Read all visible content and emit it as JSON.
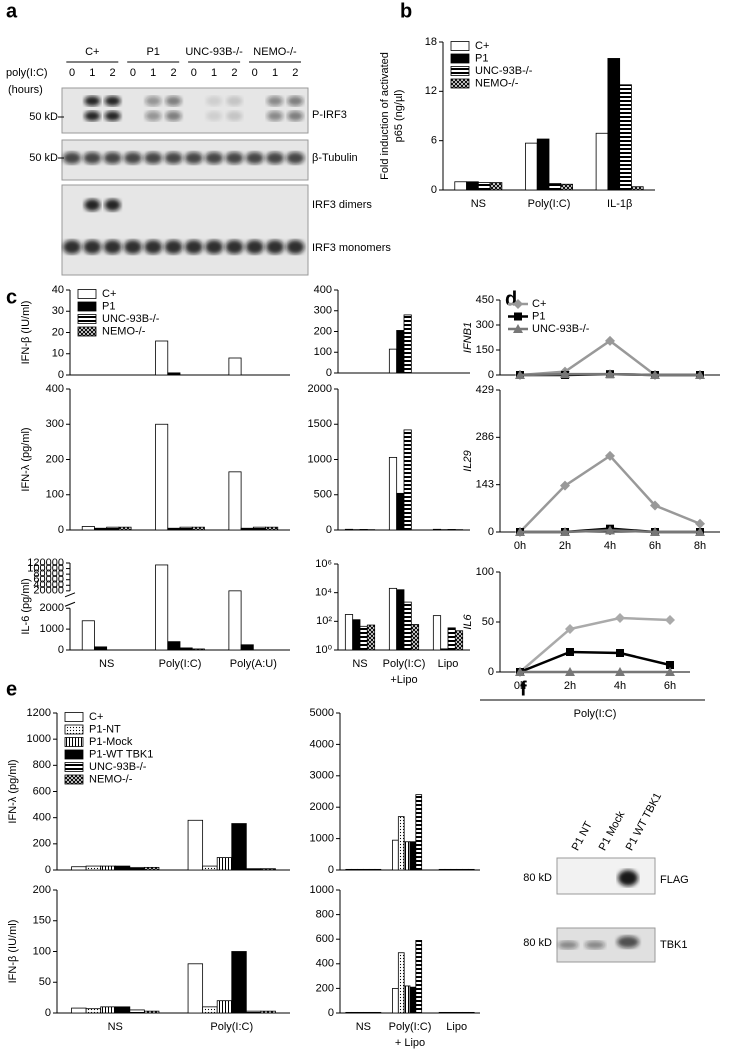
{
  "panel_labels": [
    "a",
    "b",
    "c",
    "d",
    "e",
    "f"
  ],
  "blot_a": {
    "groups": [
      "C+",
      "P1",
      "UNC-93B-/-",
      "NEMO-/-"
    ],
    "treatment": "poly(I:C)",
    "unit": "(hours)",
    "lanes": [
      "0",
      "1",
      "2",
      "0",
      "1",
      "2",
      "0",
      "1",
      "2",
      "0",
      "1",
      "2"
    ],
    "markers": [
      "50 kD",
      "50 kD"
    ],
    "bands": [
      "P-IRF3",
      "β-Tubulin",
      "IRF3 dimers",
      "IRF3 monomers"
    ]
  },
  "blot_f": {
    "lanes": [
      "P1 NT",
      "P1 Mock",
      "P1 WT TBK1"
    ],
    "markers": [
      "80 kD",
      "80 kD"
    ],
    "bands": [
      "FLAG",
      "TBK1"
    ]
  },
  "chart_data": [
    {
      "type": "bar",
      "ylabel": [
        "Fold induction of activated",
        "p65 (ng/µl)"
      ],
      "categories": [
        "NS",
        "Poly(I:C)",
        "IL-1β"
      ],
      "series": [
        {
          "name": "C+",
          "color": "#ffffff",
          "values": [
            1,
            5.7,
            6.9
          ]
        },
        {
          "name": "P1",
          "color": "#000000",
          "values": [
            1,
            6.2,
            16
          ]
        },
        {
          "name": "UNC-93B-/-",
          "color": "#ffffff",
          "pattern": "hstripes",
          "values": [
            0.9,
            0.8,
            12.8
          ]
        },
        {
          "name": "NEMO-/-",
          "color": "#ffffff",
          "pattern": "cross",
          "values": [
            0.9,
            0.7,
            0.4
          ]
        }
      ],
      "ylim": [
        0,
        18
      ],
      "yticks": [
        0,
        6,
        12,
        18
      ],
      "legend": "upper left"
    },
    {
      "type": "bar",
      "ylabel": "IFN-β (IU/ml)",
      "categories": [
        null,
        null,
        null
      ],
      "series": [
        {
          "name": "C+",
          "color": "#ffffff",
          "values": [
            0,
            16,
            8
          ]
        },
        {
          "name": "P1",
          "color": "#000000",
          "values": [
            0,
            1,
            0
          ]
        },
        {
          "name": "UNC-93B-/-",
          "color": "#ffffff",
          "pattern": "hstripes",
          "values": [
            0,
            0,
            0
          ]
        },
        {
          "name": "NEMO-/-",
          "color": "#ffffff",
          "pattern": "cross",
          "values": [
            0,
            0,
            0
          ]
        }
      ],
      "ylim": [
        0,
        40
      ],
      "yticks": [
        0,
        10,
        20,
        30,
        40
      ],
      "legend": "upper left"
    },
    {
      "type": "bar",
      "categories": [
        null,
        null,
        null
      ],
      "series": [
        {
          "color": "#ffffff",
          "values": [
            0,
            115,
            0
          ]
        },
        {
          "color": "#000000",
          "values": [
            0,
            205,
            0
          ]
        },
        {
          "color": "#ffffff",
          "pattern": "hstripes",
          "values": [
            0,
            280,
            0
          ]
        },
        {
          "color": "#ffffff",
          "pattern": "cross",
          "values": [
            0,
            0,
            0
          ]
        }
      ],
      "ylim": [
        0,
        400
      ],
      "yticks": [
        0,
        100,
        200,
        300,
        400
      ]
    },
    {
      "type": "bar",
      "ylabel": "IFN-λ (pg/ml)",
      "categories": [
        null,
        null,
        null
      ],
      "series": [
        {
          "color": "#ffffff",
          "values": [
            10,
            300,
            165
          ]
        },
        {
          "color": "#000000",
          "values": [
            5,
            5,
            5
          ]
        },
        {
          "color": "#ffffff",
          "pattern": "hstripes",
          "values": [
            8,
            8,
            8
          ]
        },
        {
          "color": "#ffffff",
          "pattern": "cross",
          "values": [
            8,
            8,
            8
          ]
        }
      ],
      "ylim": [
        0,
        400
      ],
      "yticks": [
        0,
        100,
        200,
        300,
        400
      ]
    },
    {
      "type": "bar",
      "categories": [
        null,
        null,
        null
      ],
      "series": [
        {
          "color": "#ffffff",
          "values": [
            10,
            1030,
            10
          ]
        },
        {
          "color": "#000000",
          "values": [
            5,
            520,
            5
          ]
        },
        {
          "color": "#ffffff",
          "pattern": "hstripes",
          "values": [
            8,
            1420,
            8
          ]
        },
        {
          "color": "#ffffff",
          "pattern": "cross",
          "values": [
            5,
            0,
            5
          ]
        }
      ],
      "ylim": [
        0,
        2000
      ],
      "yticks": [
        0,
        500,
        1000,
        1500,
        2000
      ]
    },
    {
      "type": "bar",
      "ylabel": "IL-6 (pg/ml)",
      "categories": [
        "NS",
        "Poly(I:C)",
        "Poly(A:U)"
      ],
      "series": [
        {
          "color": "#ffffff",
          "values": [
            1400,
            113000,
            20000
          ]
        },
        {
          "color": "#000000",
          "values": [
            150,
            400,
            250
          ]
        },
        {
          "color": "#ffffff",
          "pattern": "hstripes",
          "values": [
            0,
            100,
            0
          ]
        },
        {
          "color": "#ffffff",
          "pattern": "cross",
          "values": [
            0,
            50,
            0
          ]
        }
      ],
      "ylim": [
        0,
        120000
      ],
      "ybreak": [
        2000,
        20000
      ],
      "yticks": [
        0,
        1000,
        2000,
        20000,
        40000,
        60000,
        80000,
        100000,
        120000
      ]
    },
    {
      "type": "bar",
      "categories": [
        "NS",
        "Poly(I:C)",
        "Lipo"
      ],
      "category_sublabels": [
        null,
        "+Lipo",
        null
      ],
      "series": [
        {
          "color": "#ffffff",
          "values": [
            300,
            20000,
            250
          ]
        },
        {
          "color": "#000000",
          "values": [
            130,
            16000,
            1.2
          ]
        },
        {
          "color": "#ffffff",
          "pattern": "hstripes",
          "values": [
            45,
            2200,
            35
          ]
        },
        {
          "color": "#ffffff",
          "pattern": "cross",
          "values": [
            55,
            60,
            22
          ]
        }
      ],
      "ylog": true,
      "ylim": [
        1,
        1000000
      ],
      "yticks": [
        {
          "value": 1,
          "label": "10⁰"
        },
        {
          "value": 100,
          "label": "10²"
        },
        {
          "value": 10000,
          "label": "10⁴"
        },
        {
          "value": 1000000,
          "label": "10⁶"
        }
      ]
    },
    {
      "type": "line",
      "ylabel": "IFNB1",
      "ylabel_italic": true,
      "categories": [
        null,
        null,
        null,
        null,
        null
      ],
      "series": [
        {
          "name": "C+",
          "color": "#999999",
          "marker": "diamond",
          "values": [
            0,
            20,
            205,
            0,
            0
          ]
        },
        {
          "name": "P1",
          "color": "#000000",
          "marker": "square",
          "values": [
            0,
            0,
            5,
            0,
            0
          ]
        },
        {
          "name": "UNC-93B-/-",
          "color": "#777777",
          "marker": "triangle",
          "values": [
            0,
            5,
            5,
            0,
            0
          ]
        }
      ],
      "ylim": [
        0,
        450
      ],
      "yticks": [
        0,
        150,
        300,
        450
      ],
      "legend": "upper left"
    },
    {
      "type": "line",
      "ylabel": "IL29",
      "ylabel_italic": true,
      "categories": [
        "0h",
        "2h",
        "4h",
        "6h",
        "8h"
      ],
      "series": [
        {
          "color": "#999999",
          "marker": "diamond",
          "values": [
            0,
            140,
            230,
            80,
            25
          ]
        },
        {
          "color": "#000000",
          "marker": "square",
          "values": [
            0,
            0,
            10,
            0,
            0
          ]
        },
        {
          "color": "#777777",
          "marker": "triangle",
          "values": [
            0,
            0,
            5,
            0,
            0
          ]
        }
      ],
      "ylim": [
        0,
        429
      ],
      "yticks": [
        0,
        143,
        286,
        429
      ]
    },
    {
      "type": "line",
      "ylabel": "IL6",
      "ylabel_italic": true,
      "xlabel": "Poly(I:C)",
      "categories": [
        "0h",
        "2h",
        "4h",
        "6h"
      ],
      "series": [
        {
          "color": "#aaaaaa",
          "marker": "diamond",
          "values": [
            0,
            43,
            54,
            52
          ]
        },
        {
          "color": "#000000",
          "marker": "square",
          "values": [
            0,
            20,
            19,
            7
          ]
        },
        {
          "color": "#777777",
          "marker": "triangle",
          "values": [
            0,
            0,
            0,
            0
          ]
        }
      ],
      "ylim": [
        0,
        100
      ],
      "yticks": [
        0,
        50,
        100
      ]
    },
    {
      "type": "bar",
      "ylabel": "IFN-λ (pg/ml)",
      "categories": [
        null,
        null
      ],
      "series": [
        {
          "name": "C+",
          "color": "#ffffff",
          "values": [
            25,
            380
          ]
        },
        {
          "name": "P1-NT",
          "color": "#ffffff",
          "pattern": "dots",
          "values": [
            30,
            30
          ]
        },
        {
          "name": "P1-Mock",
          "color": "#ffffff",
          "pattern": "vstripes",
          "values": [
            30,
            95
          ]
        },
        {
          "name": "P1-WT TBK1",
          "color": "#000000",
          "values": [
            30,
            355
          ]
        },
        {
          "name": "UNC-93B-/-",
          "color": "#ffffff",
          "pattern": "hstripes",
          "values": [
            20,
            10
          ]
        },
        {
          "name": "NEMO-/-",
          "color": "#ffffff",
          "pattern": "cross",
          "values": [
            20,
            10
          ]
        }
      ],
      "ylim": [
        0,
        1200
      ],
      "yticks": [
        0,
        200,
        400,
        600,
        800,
        1000,
        1200
      ],
      "legend": "upper left"
    },
    {
      "type": "bar",
      "categories": [
        null,
        null,
        null
      ],
      "series": [
        {
          "color": "#ffffff",
          "values": [
            20,
            950,
            20
          ]
        },
        {
          "color": "#ffffff",
          "pattern": "dots",
          "values": [
            20,
            1700,
            20
          ]
        },
        {
          "color": "#ffffff",
          "pattern": "vstripes",
          "values": [
            20,
            900,
            20
          ]
        },
        {
          "color": "#000000",
          "values": [
            20,
            900,
            20
          ]
        },
        {
          "color": "#ffffff",
          "pattern": "hstripes",
          "values": [
            20,
            2400,
            20
          ]
        },
        {
          "color": "#ffffff",
          "pattern": "cross",
          "values": [
            20,
            0,
            20
          ]
        }
      ],
      "ylim": [
        0,
        5000
      ],
      "yticks": [
        0,
        1000,
        2000,
        3000,
        4000,
        5000
      ]
    },
    {
      "type": "bar",
      "ylabel": "IFN-β (IU/ml)",
      "categories": [
        "NS",
        "Poly(I:C)"
      ],
      "series": [
        {
          "color": "#ffffff",
          "values": [
            8,
            80
          ]
        },
        {
          "color": "#ffffff",
          "pattern": "dots",
          "values": [
            7,
            10
          ]
        },
        {
          "color": "#ffffff",
          "pattern": "vstripes",
          "values": [
            10,
            20
          ]
        },
        {
          "color": "#000000",
          "values": [
            10,
            100
          ]
        },
        {
          "color": "#ffffff",
          "pattern": "hstripes",
          "values": [
            5,
            3
          ]
        },
        {
          "color": "#ffffff",
          "pattern": "cross",
          "values": [
            3,
            3
          ]
        }
      ],
      "ylim": [
        0,
        200
      ],
      "yticks": [
        0,
        50,
        100,
        150,
        200
      ]
    },
    {
      "type": "bar",
      "categories": [
        "NS",
        "Poly(I:C)",
        "Lipo"
      ],
      "category_sublabels": [
        null,
        "+ Lipo",
        null
      ],
      "series": [
        {
          "color": "#ffffff",
          "values": [
            5,
            200,
            5
          ]
        },
        {
          "color": "#ffffff",
          "pattern": "dots",
          "values": [
            5,
            490,
            5
          ]
        },
        {
          "color": "#ffffff",
          "pattern": "vstripes",
          "values": [
            5,
            220,
            5
          ]
        },
        {
          "color": "#000000",
          "values": [
            5,
            210,
            5
          ]
        },
        {
          "color": "#ffffff",
          "pattern": "hstripes",
          "values": [
            5,
            590,
            5
          ]
        },
        {
          "color": "#ffffff",
          "pattern": "cross",
          "values": [
            5,
            0,
            5
          ]
        }
      ],
      "ylim": [
        0,
        1000
      ],
      "yticks": [
        0,
        200,
        400,
        600,
        800,
        1000
      ]
    }
  ]
}
